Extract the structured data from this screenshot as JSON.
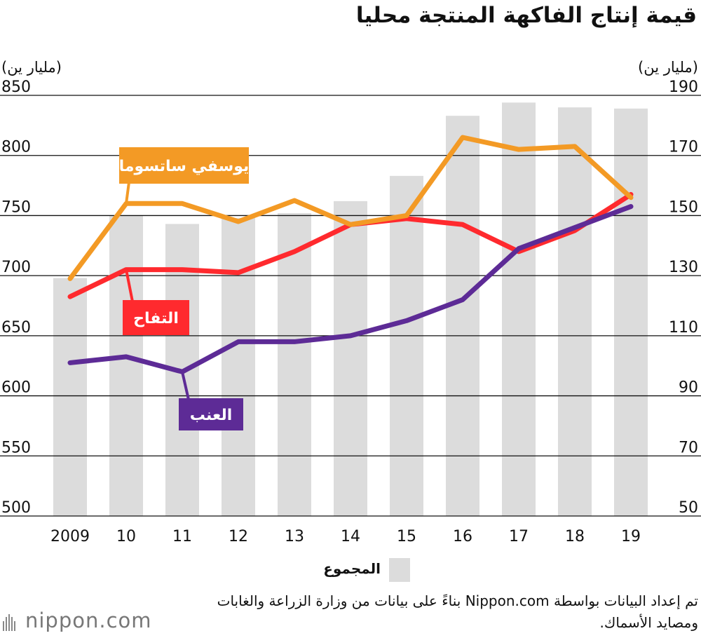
{
  "title": "قيمة إنتاج الفاكهة المنتجة محليا",
  "left_unit": "(مليار ين)",
  "right_unit": "(مليار ين)",
  "legend": {
    "label": "المجموع",
    "color": "#dcdcdc"
  },
  "source": "تم إعداد البيانات بواسطة Nippon.com بناءً على بيانات من وزارة الزراعة والغابات ومصايد الأسماك.",
  "logo": {
    "text": "nippon.com",
    "mark": "barcode-mark-icon"
  },
  "chart_data": {
    "type": "bar+line",
    "categories": [
      "2009",
      "10",
      "11",
      "12",
      "13",
      "14",
      "15",
      "16",
      "17",
      "18",
      "19"
    ],
    "left_axis": {
      "ylim": [
        500,
        850
      ],
      "ticks": [
        500,
        550,
        600,
        650,
        700,
        750,
        800,
        850
      ]
    },
    "right_axis": {
      "ylim": [
        50,
        190
      ],
      "ticks": [
        50,
        70,
        90,
        110,
        130,
        150,
        170,
        190
      ]
    },
    "bars": {
      "name": "المجموع",
      "axis": "left",
      "color": "#dcdcdc",
      "values": [
        698,
        750,
        743,
        748,
        752,
        762,
        783,
        833,
        844,
        840,
        839
      ]
    },
    "series": [
      {
        "name": "يوسفي ساتسوما",
        "axis": "right",
        "color": "#f39a25",
        "values": [
          129,
          154,
          154,
          148,
          155,
          147,
          150,
          176,
          172,
          173,
          156
        ],
        "callout_point": 1
      },
      {
        "name": "التفاح",
        "axis": "right",
        "color": "#ff2a2e",
        "values": [
          123,
          132,
          132,
          131,
          138,
          147,
          149,
          147,
          138,
          145,
          157
        ],
        "callout_point": 1
      },
      {
        "name": "العنب",
        "axis": "right",
        "color": "#5d2b96",
        "values": [
          101,
          103,
          98,
          108,
          108,
          110,
          115,
          122,
          139,
          146,
          153
        ],
        "callout_point": 2
      }
    ]
  }
}
